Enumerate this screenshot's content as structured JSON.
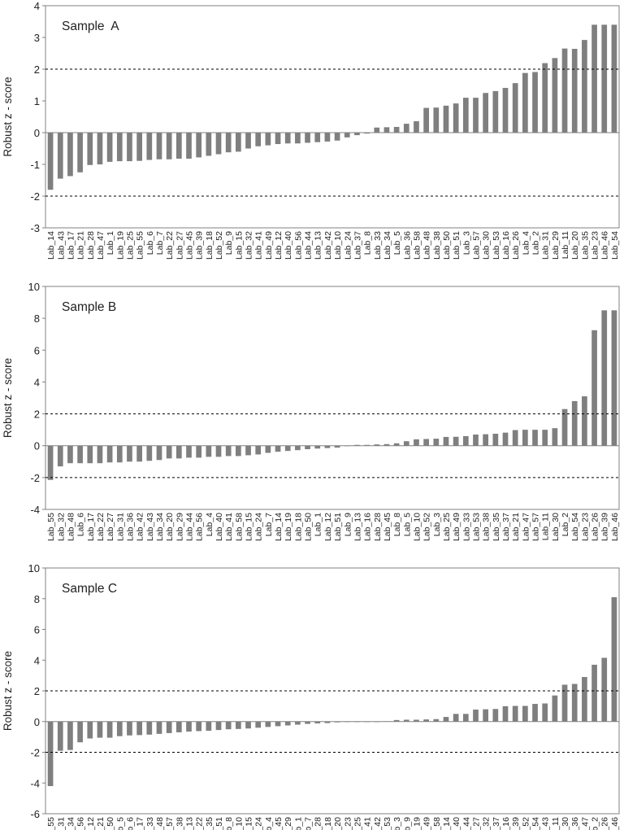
{
  "figure": {
    "colors": {
      "bar": "#7f7f7f",
      "axis": "#808080",
      "refline": "#000000",
      "text": "#222222"
    }
  },
  "chart_data": [
    {
      "type": "bar",
      "title": "Sample  A",
      "ylabel": "Robust  z - score",
      "ylim": [
        -3,
        4
      ],
      "yticks": [
        -3,
        -2,
        -1,
        0,
        1,
        2,
        3,
        4
      ],
      "reference_lines": [
        -2,
        2
      ],
      "categories": [
        "Lab_14",
        "Lab_43",
        "Lab_17",
        "Lab_21",
        "Lab_28",
        "Lab_47",
        "Lab_1",
        "Lab_19",
        "Lab_25",
        "Lab_55",
        "Lab_6",
        "Lab_7",
        "Lab_22",
        "Lab_27",
        "Lab_45",
        "Lab_39",
        "Lab_18",
        "Lab_52",
        "Lab_9",
        "Lab_15",
        "Lab_32",
        "Lab_41",
        "Lab_49",
        "Lab_12",
        "Lab_40",
        "Lab_56",
        "Lab_44",
        "Lab_13",
        "Lab_42",
        "Lab_10",
        "Lab_24",
        "Lab_37",
        "Lab_8",
        "Lab_33",
        "Lab_34",
        "Lab_5",
        "Lab_36",
        "Lab_58",
        "Lab_48",
        "Lab_38",
        "Lab_50",
        "Lab_51",
        "Lab_3",
        "Lab_57",
        "Lab_30",
        "Lab_53",
        "Lab_16",
        "Lab_26",
        "Lab_4",
        "Lab_2",
        "Lab_31",
        "Lab_29",
        "Lab_11",
        "Lab_20",
        "Lab_35",
        "Lab_23",
        "Lab_46",
        "Lab_54"
      ],
      "values": [
        -1.8,
        -1.45,
        -1.37,
        -1.25,
        -1.02,
        -1.0,
        -0.92,
        -0.9,
        -0.9,
        -0.89,
        -0.86,
        -0.84,
        -0.84,
        -0.82,
        -0.82,
        -0.78,
        -0.73,
        -0.68,
        -0.62,
        -0.6,
        -0.5,
        -0.43,
        -0.4,
        -0.36,
        -0.34,
        -0.34,
        -0.32,
        -0.3,
        -0.28,
        -0.25,
        -0.15,
        -0.08,
        -0.03,
        0.16,
        0.17,
        0.18,
        0.28,
        0.36,
        0.78,
        0.79,
        0.85,
        0.92,
        1.1,
        1.1,
        1.25,
        1.31,
        1.41,
        1.56,
        1.88,
        1.91,
        2.19,
        2.35,
        2.65,
        2.64,
        2.92,
        3.4,
        3.4,
        3.4
      ]
    },
    {
      "type": "bar",
      "title": "Sample B",
      "ylabel": "Robust  z - score",
      "ylim": [
        -4,
        10
      ],
      "yticks": [
        -4,
        -2,
        0,
        2,
        4,
        6,
        8,
        10
      ],
      "reference_lines": [
        -2,
        2
      ],
      "categories": [
        "Lab_55",
        "Lab_32",
        "Lab_48",
        "Lab_6",
        "Lab_17",
        "Lab_22",
        "Lab_27",
        "Lab_31",
        "Lab_36",
        "Lab_42",
        "Lab_43",
        "Lab_34",
        "Lab_20",
        "Lab_29",
        "Lab_44",
        "Lab_56",
        "Lab_4",
        "Lab_40",
        "Lab_41",
        "Lab_58",
        "Lab_15",
        "Lab_24",
        "Lab_7",
        "Lab_14",
        "Lab_19",
        "Lab_18",
        "Lab_50",
        "Lab_1",
        "Lab_12",
        "Lab_51",
        "Lab_9",
        "Lab_13",
        "Lab_16",
        "Lab_28",
        "Lab_45",
        "Lab_8",
        "Lab_5",
        "Lab_10",
        "Lab_52",
        "Lab_3",
        "Lab_25",
        "Lab_49",
        "Lab_33",
        "Lab_53",
        "Lab_38",
        "Lab_35",
        "Lab_37",
        "Lab_21",
        "Lab_47",
        "Lab_57",
        "Lab_11",
        "Lab_30",
        "Lab_2",
        "Lab_54",
        "Lab_23",
        "Lab_26",
        "Lab_39",
        "Lab_46"
      ],
      "values": [
        -2.15,
        -1.3,
        -1.1,
        -1.1,
        -1.1,
        -1.1,
        -1.05,
        -1.05,
        -1.0,
        -1.0,
        -0.95,
        -0.9,
        -0.8,
        -0.8,
        -0.75,
        -0.75,
        -0.7,
        -0.7,
        -0.65,
        -0.65,
        -0.6,
        -0.55,
        -0.45,
        -0.38,
        -0.33,
        -0.28,
        -0.22,
        -0.18,
        -0.15,
        -0.12,
        0.0,
        0.05,
        0.05,
        0.08,
        0.1,
        0.15,
        0.28,
        0.4,
        0.42,
        0.44,
        0.55,
        0.56,
        0.6,
        0.7,
        0.72,
        0.75,
        0.82,
        0.98,
        1.0,
        1.0,
        1.0,
        1.1,
        2.3,
        2.8,
        3.1,
        7.25,
        8.5,
        8.5
      ]
    },
    {
      "type": "bar",
      "title": "Sample C",
      "ylabel": "Robust  z - score",
      "ylim": [
        -6,
        10
      ],
      "yticks": [
        -6,
        -4,
        -2,
        0,
        2,
        4,
        6,
        8,
        10
      ],
      "reference_lines": [
        -2,
        2
      ],
      "categories": [
        "Lab_55",
        "Lab_31",
        "Lab_34",
        "Lab_56",
        "Lab_12",
        "Lab_21",
        "Lab_50",
        "Lab_5",
        "Lab_6",
        "Lab_17",
        "Lab_33",
        "Lab_48",
        "Lab_57",
        "Lab_38",
        "Lab_13",
        "Lab_22",
        "Lab_35",
        "Lab_51",
        "Lab_8",
        "Lab_10",
        "Lab_15",
        "Lab_24",
        "Lab_4",
        "Lab_45",
        "Lab_29",
        "Lab_1",
        "Lab_7",
        "Lab_28",
        "Lab_18",
        "Lab_20",
        "Lab_23",
        "Lab_25",
        "Lab_41",
        "Lab_42",
        "Lab_53",
        "Lab_3",
        "Lab_9",
        "Lab_19",
        "Lab_49",
        "Lab_58",
        "Lab_14",
        "Lab_40",
        "Lab_44",
        "Lab_27",
        "Lab_32",
        "Lab_37",
        "Lab_16",
        "Lab_39",
        "Lab_52",
        "Lab_54",
        "Lab_43",
        "Lab_11",
        "Lab_30",
        "Lab_36",
        "Lab_47",
        "Lab_2",
        "Lab_26",
        "Lab_46"
      ],
      "values": [
        -4.2,
        -1.9,
        -1.85,
        -1.35,
        -1.1,
        -1.05,
        -1.05,
        -0.95,
        -0.9,
        -0.88,
        -0.85,
        -0.8,
        -0.75,
        -0.7,
        -0.65,
        -0.62,
        -0.6,
        -0.55,
        -0.5,
        -0.48,
        -0.45,
        -0.4,
        -0.35,
        -0.3,
        -0.25,
        -0.2,
        -0.15,
        -0.12,
        -0.1,
        -0.05,
        -0.03,
        -0.02,
        -0.02,
        0.0,
        0.02,
        0.1,
        0.12,
        0.12,
        0.14,
        0.16,
        0.3,
        0.5,
        0.5,
        0.78,
        0.8,
        0.82,
        1.0,
        1.02,
        1.02,
        1.15,
        1.18,
        1.7,
        2.4,
        2.45,
        2.9,
        3.7,
        4.15,
        8.1
      ]
    }
  ]
}
